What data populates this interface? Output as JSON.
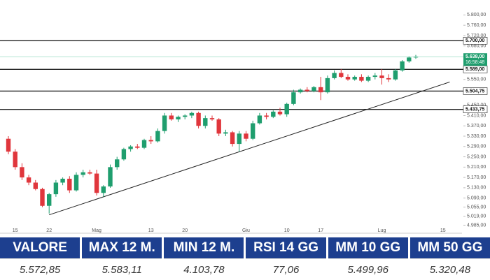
{
  "chart_data": {
    "type": "candlestick",
    "categories": [
      null,
      "15",
      null,
      null,
      null,
      null,
      "22",
      null,
      null,
      null,
      null,
      null,
      null,
      "Mag",
      null,
      null,
      null,
      null,
      null,
      null,
      null,
      "13",
      null,
      null,
      null,
      null,
      "20",
      null,
      null,
      null,
      null,
      null,
      null,
      null,
      null,
      "Giu",
      null,
      null,
      null,
      null,
      null,
      "10",
      null,
      null,
      null,
      null,
      "17",
      null,
      null,
      null,
      null,
      null,
      null,
      null,
      null,
      "Lug",
      null,
      null,
      null,
      null,
      null,
      null,
      null,
      null,
      "15",
      null
    ],
    "open": [
      5320,
      5270,
      5210,
      5170,
      5150,
      5125,
      5060,
      5105,
      5150,
      5165,
      5120,
      5180,
      5190,
      5185,
      5110,
      5135,
      5210,
      5240,
      5280,
      5290,
      5285,
      5315,
      5310,
      5350,
      5410,
      5395,
      5405,
      5410,
      5420,
      5370,
      5400,
      5395,
      5340,
      5345,
      5300,
      5340,
      5320,
      5380,
      5410,
      5405,
      5425,
      5415,
      5455,
      5500,
      5510,
      5505,
      5520,
      5500,
      5555,
      5575,
      5560,
      5550,
      5560,
      5545,
      5560,
      5565,
      5555,
      5550,
      5585,
      5620,
      5635,
      null,
      null,
      null,
      null,
      null
    ],
    "high": [
      5330,
      5280,
      5225,
      5180,
      5160,
      5130,
      5110,
      5160,
      5170,
      5175,
      5190,
      5200,
      5200,
      5200,
      5140,
      5220,
      5250,
      5285,
      5295,
      5300,
      5320,
      5330,
      5360,
      5420,
      5420,
      5410,
      5415,
      5425,
      5425,
      5410,
      5410,
      5400,
      5355,
      5350,
      5350,
      5350,
      5390,
      5420,
      5420,
      5430,
      5440,
      5460,
      5510,
      5515,
      5520,
      5525,
      5560,
      5565,
      5585,
      5590,
      5570,
      5565,
      5570,
      5565,
      5575,
      5590,
      5570,
      5590,
      5625,
      5640,
      5645,
      null,
      null,
      null,
      null,
      null
    ],
    "low": [
      5260,
      5200,
      5160,
      5140,
      5120,
      5055,
      5030,
      5095,
      5140,
      5110,
      5115,
      5170,
      5180,
      5100,
      5095,
      5130,
      5200,
      5235,
      5270,
      5280,
      5280,
      5300,
      5305,
      5340,
      5390,
      5385,
      5395,
      5400,
      5360,
      5360,
      5390,
      5330,
      5330,
      5290,
      5270,
      5310,
      5315,
      5375,
      5395,
      5400,
      5410,
      5405,
      5450,
      5495,
      5500,
      5500,
      5470,
      5495,
      5550,
      5555,
      5545,
      5545,
      5540,
      5540,
      5550,
      5530,
      5540,
      5545,
      5580,
      5615,
      5630,
      null,
      null,
      null,
      null,
      null
    ],
    "close": [
      5270,
      5210,
      5170,
      5150,
      5125,
      5060,
      5105,
      5150,
      5165,
      5120,
      5180,
      5190,
      5185,
      5110,
      5135,
      5210,
      5240,
      5280,
      5290,
      5285,
      5315,
      5310,
      5350,
      5410,
      5395,
      5405,
      5410,
      5420,
      5370,
      5400,
      5395,
      5340,
      5345,
      5300,
      5340,
      5320,
      5380,
      5410,
      5405,
      5425,
      5415,
      5455,
      5500,
      5510,
      5505,
      5520,
      5500,
      5555,
      5575,
      5560,
      5550,
      5560,
      5545,
      5560,
      5565,
      5555,
      5550,
      5585,
      5620,
      5635,
      5638,
      null,
      null,
      null,
      null,
      null
    ],
    "up_color": "#1f9e6e",
    "down_color": "#e0363c",
    "ylim": [
      4970,
      5820
    ],
    "yticks": [
      {
        "value": 5800,
        "label": "5.800,00"
      },
      {
        "value": 5760,
        "label": "5.760,00"
      },
      {
        "value": 5720,
        "label": "5.720,00"
      },
      {
        "value": 5680,
        "label": "5.680,00"
      },
      {
        "value": 5550,
        "label": "5.550,00"
      },
      {
        "value": 5450,
        "label": "5.450,00"
      },
      {
        "value": 5410,
        "label": "5.410,00"
      },
      {
        "value": 5370,
        "label": "5.370,00"
      },
      {
        "value": 5330,
        "label": "5.330,00"
      },
      {
        "value": 5290,
        "label": "5.290,00"
      },
      {
        "value": 5250,
        "label": "5.250,00"
      },
      {
        "value": 5210,
        "label": "5.210,00"
      },
      {
        "value": 5170,
        "label": "5.170,00"
      },
      {
        "value": 5130,
        "label": "5.130,00"
      },
      {
        "value": 5090,
        "label": "5.090,00"
      },
      {
        "value": 5055,
        "label": "5.055,00"
      },
      {
        "value": 5019,
        "label": "5.019,00"
      },
      {
        "value": 4985,
        "label": "4.985,00"
      }
    ],
    "hlines": [
      {
        "value": 5700,
        "label": "5.700,00"
      },
      {
        "value": 5589,
        "label": "5.589,00"
      },
      {
        "value": 5504.75,
        "label": "5.504,75"
      },
      {
        "value": 5433.75,
        "label": "5.433,75"
      }
    ],
    "last_price": {
      "value": 5638,
      "label": "5.638,00",
      "time": "16:58:48"
    },
    "trendline": {
      "x": [
        6,
        65
      ],
      "y": [
        5025,
        5540
      ]
    }
  },
  "table": {
    "headers": [
      "VALORE",
      "MAX 12 M.",
      "MIN 12 M.",
      "RSI 14 GG",
      "MM 10 GG",
      "MM 50 GG"
    ],
    "values": [
      "5.572,85",
      "5.583,11",
      "4.103,78",
      "77,06",
      "5.499,96",
      "5.320,48"
    ]
  }
}
